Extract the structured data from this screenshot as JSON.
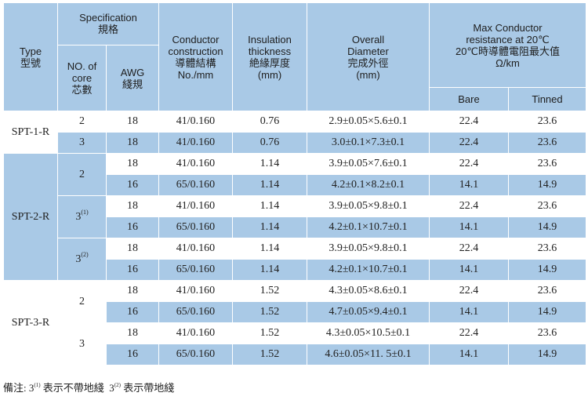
{
  "header": {
    "type": "Type\n型號",
    "specification": "Specification\n規格",
    "no_of_core": "NO. of\ncore\n芯數",
    "awg": "AWG\n綫規",
    "conductor": "Conductor\nconstruction\n導體結構\nNo./mm",
    "insulation": "Insulation\nthickness\n絶緣厚度\n(mm)",
    "overall": "Overall\nDiameter\n完成外徑\n(mm)",
    "resistance": "Max Conductor\nresistance at 20℃\n20℃時導體電阻最大值\nΩ/km",
    "bare": "Bare",
    "tinned": "Tinned"
  },
  "groups": [
    {
      "type": "SPT-1-R",
      "cores": [
        {
          "core": "2",
          "sup": "",
          "rows": [
            {
              "awg": "18",
              "conductor": "41/0.160",
              "insulation": "0.76",
              "overall": "2.9±0.05×5.6±0.1",
              "bare": "22.4",
              "tinned": "23.6"
            }
          ]
        },
        {
          "core": "3",
          "sup": "",
          "rows": [
            {
              "awg": "18",
              "conductor": "41/0.160",
              "insulation": "0.76",
              "overall": "3.0±0.1×7.3±0.1",
              "bare": "22.4",
              "tinned": "23.6"
            }
          ]
        }
      ]
    },
    {
      "type": "SPT-2-R",
      "cores": [
        {
          "core": "2",
          "sup": "",
          "rows": [
            {
              "awg": "18",
              "conductor": "41/0.160",
              "insulation": "1.14",
              "overall": "3.9±0.05×7.6±0.1",
              "bare": "22.4",
              "tinned": "23.6"
            },
            {
              "awg": "16",
              "conductor": "65/0.160",
              "insulation": "1.14",
              "overall": "4.2±0.1×8.2±0.1",
              "bare": "14.1",
              "tinned": "14.9"
            }
          ]
        },
        {
          "core": "3",
          "sup": "(1)",
          "rows": [
            {
              "awg": "18",
              "conductor": "41/0.160",
              "insulation": "1.14",
              "overall": "3.9±0.05×9.8±0.1",
              "bare": "22.4",
              "tinned": "23.6"
            },
            {
              "awg": "16",
              "conductor": "65/0.160",
              "insulation": "1.14",
              "overall": "4.2±0.1×10.7±0.1",
              "bare": "14.1",
              "tinned": "14.9"
            }
          ]
        },
        {
          "core": "3",
          "sup": "(2)",
          "rows": [
            {
              "awg": "18",
              "conductor": "41/0.160",
              "insulation": "1.14",
              "overall": "3.9±0.05×9.8±0.1",
              "bare": "22.4",
              "tinned": "23.6"
            },
            {
              "awg": "16",
              "conductor": "65/0.160",
              "insulation": "1.14",
              "overall": "4.2±0.1×10.7±0.1",
              "bare": "14.1",
              "tinned": "14.9"
            }
          ]
        }
      ]
    },
    {
      "type": "SPT-3-R",
      "cores": [
        {
          "core": "2",
          "sup": "",
          "rows": [
            {
              "awg": "18",
              "conductor": "41/0.160",
              "insulation": "1.52",
              "overall": "4.3±0.05×8.6±0.1",
              "bare": "22.4",
              "tinned": "23.6"
            },
            {
              "awg": "16",
              "conductor": "65/0.160",
              "insulation": "1.52",
              "overall": "4.7±0.05×9.4±0.1",
              "bare": "14.1",
              "tinned": "14.9"
            }
          ]
        },
        {
          "core": "3",
          "sup": "",
          "rows": [
            {
              "awg": "18",
              "conductor": "41/0.160",
              "insulation": "1.52",
              "overall": "4.3±0.05×10.5±0.1",
              "bare": "22.4",
              "tinned": "23.6"
            },
            {
              "awg": "16",
              "conductor": "65/0.160",
              "insulation": "1.52",
              "overall": "4.6±0.05×11. 5±0.1",
              "bare": "14.1",
              "tinned": "14.9"
            }
          ]
        }
      ]
    }
  ],
  "note": {
    "prefix": "備注: 3",
    "sup1": "(1)",
    "text1": " 表示不帶地綫  3",
    "sup2": "(2)",
    "text2": " 表示帶地綫"
  },
  "colors": {
    "header_bg": "#a9c9e6",
    "row_alt_bg": "#a9c9e6",
    "row_bg": "#ffffff"
  }
}
